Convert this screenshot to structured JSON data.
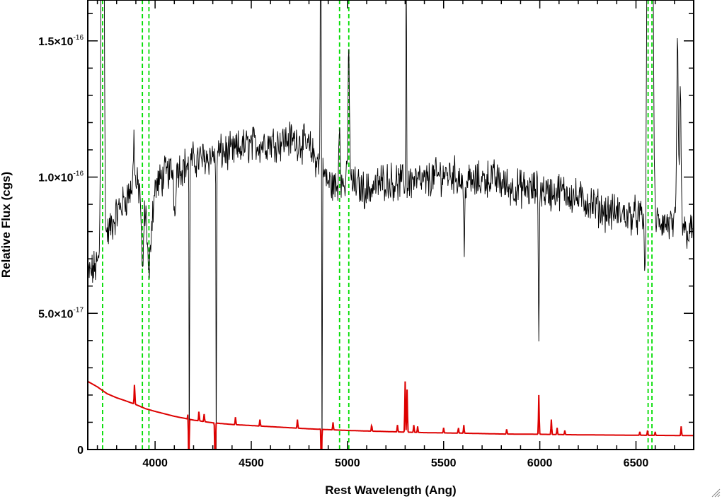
{
  "chart_data": {
    "type": "line",
    "title": "",
    "xlabel": "Rest Wavelength (Ang)",
    "ylabel": "Relative Flux (cgs)",
    "xlim": [
      3650,
      6800
    ],
    "ylim": [
      0,
      1.65e-16
    ],
    "x_ticks": [
      {
        "value": 4000,
        "label": "4000"
      },
      {
        "value": 4500,
        "label": "4500"
      },
      {
        "value": 5000,
        "label": "5000"
      },
      {
        "value": 5500,
        "label": "5500"
      },
      {
        "value": 6000,
        "label": "6000"
      },
      {
        "value": 6500,
        "label": "6500"
      }
    ],
    "y_ticks": [
      {
        "value": 0,
        "mantissa": "0",
        "exponent": ""
      },
      {
        "value": 5e-17,
        "mantissa": "5.0×10",
        "exponent": "-17"
      },
      {
        "value": 1e-16,
        "mantissa": "1.0×10",
        "exponent": "-16"
      },
      {
        "value": 1.5e-16,
        "mantissa": "1.5×10",
        "exponent": "-16"
      }
    ],
    "grid": false,
    "series": [
      {
        "role": "spectrum",
        "color": "#000000",
        "x": [
          3650,
          3680,
          3710,
          3730,
          3750,
          3780,
          3810,
          3840,
          3870,
          3900,
          3930,
          3950,
          3970,
          4000,
          4050,
          4100,
          4150,
          4200,
          4250,
          4300,
          4350,
          4400,
          4450,
          4500,
          4550,
          4600,
          4650,
          4700,
          4750,
          4800,
          4850,
          4900,
          4950,
          5000,
          5050,
          5100,
          5150,
          5200,
          5250,
          5300,
          5350,
          5400,
          5450,
          5500,
          5550,
          5600,
          5650,
          5700,
          5750,
          5800,
          5850,
          5900,
          5950,
          6000,
          6050,
          6100,
          6150,
          6200,
          6250,
          6300,
          6350,
          6400,
          6450,
          6500,
          6550,
          6600,
          6650,
          6700,
          6750,
          6800
        ],
        "y": [
          6.4e-17,
          6.6e-17,
          6.9e-17,
          7.4e-17,
          7.9e-17,
          8.3e-17,
          8.8e-17,
          9.1e-17,
          9.5e-17,
          9.7e-17,
          9.5e-17,
          8.6e-17,
          7.6e-17,
          9.6e-17,
          1.01e-16,
          1.03e-16,
          1.04e-16,
          1.06e-16,
          1.07e-16,
          1.08e-16,
          1.09e-16,
          1.09e-16,
          1.11e-16,
          1.12e-16,
          1.12e-16,
          1.13e-16,
          1.13e-16,
          1.14e-16,
          1.13e-16,
          1.11e-16,
          1.05e-16,
          9.8e-17,
          9.6e-17,
          9.8e-17,
          9.7e-17,
          9.5e-17,
          9.7e-17,
          9.9e-17,
          9.8e-17,
          9.8e-17,
          9.9e-17,
          9.8e-17,
          1e-16,
          1.01e-16,
          1.01e-16,
          9.9e-17,
          9.8e-17,
          9.9e-17,
          1e-16,
          9.8e-17,
          9.6e-17,
          9.6e-17,
          9.5e-17,
          9.6e-17,
          9.4e-17,
          9.5e-17,
          9.4e-17,
          9.2e-17,
          9.1e-17,
          8.9e-17,
          8.7e-17,
          8.7e-17,
          8.6e-17,
          8.6e-17,
          8.4e-17,
          8.4e-17,
          8.3e-17,
          8.2e-17,
          8e-17,
          8e-17
        ],
        "noise": 5.5e-18,
        "lines": [
          {
            "x": 3727,
            "y": 3.5e-16,
            "w": 6
          },
          {
            "x": 3890,
            "y": 1.17e-16,
            "w": 3
          },
          {
            "x": 3934,
            "y": 6.3e-17,
            "w": 5
          },
          {
            "x": 3968,
            "y": 6.2e-17,
            "w": 5
          },
          {
            "x": 4102,
            "y": 8.6e-17,
            "w": 4
          },
          {
            "x": 4178,
            "y": -1e-17,
            "w": 1.5
          },
          {
            "x": 4318,
            "y": -1e-17,
            "w": 1.5
          },
          {
            "x": 4861,
            "y": 2.2e-16,
            "w": 2
          },
          {
            "x": 4868,
            "y": -1e-17,
            "w": 1.5
          },
          {
            "x": 4959,
            "y": 1.2e-16,
            "w": 4
          },
          {
            "x": 5007,
            "y": 1.45e-16,
            "w": 4
          },
          {
            "x": 5306,
            "y": 2e-16,
            "w": 2
          },
          {
            "x": 5308,
            "y": 7.2e-17,
            "w": 2
          },
          {
            "x": 5607,
            "y": 7.2e-17,
            "w": 3
          },
          {
            "x": 5995,
            "y": 4.2e-17,
            "w": 2.5
          },
          {
            "x": 6548,
            "y": 6.1e-17,
            "w": 4
          },
          {
            "x": 6563,
            "y": 2.5e-16,
            "w": 6
          },
          {
            "x": 6583,
            "y": 2.5e-16,
            "w": 6
          },
          {
            "x": 6716,
            "y": 1.5e-16,
            "w": 4
          },
          {
            "x": 6731,
            "y": 1.3e-16,
            "w": 4
          }
        ]
      },
      {
        "role": "error",
        "color": "#dd0000",
        "x": [
          3650,
          3700,
          3750,
          3800,
          3850,
          3900,
          3950,
          4000,
          4100,
          4200,
          4300,
          4400,
          4500,
          4600,
          4700,
          4800,
          4900,
          5000,
          5200,
          5400,
          5600,
          5800,
          6000,
          6200,
          6400,
          6600,
          6800
        ],
        "y": [
          2.5e-17,
          2.3e-17,
          2.05e-17,
          1.9e-17,
          1.78e-17,
          1.65e-17,
          1.5e-17,
          1.4e-17,
          1.22e-17,
          1.08e-17,
          9.8e-18,
          9.2e-18,
          8.8e-18,
          8.4e-18,
          8e-18,
          7.6e-18,
          7.3e-18,
          7e-18,
          6.6e-18,
          6.2e-18,
          6e-18,
          5.7e-18,
          5.6e-18,
          5.4e-18,
          5.3e-18,
          5.2e-18,
          5.1e-18
        ],
        "spikes": [
          {
            "x": 3893,
            "y": 2.4e-17
          },
          {
            "x": 4172,
            "y": 1.5e-17
          },
          {
            "x": 4175,
            "y": -1e-17
          },
          {
            "x": 4228,
            "y": 1.4e-17
          },
          {
            "x": 4255,
            "y": 1.3e-17
          },
          {
            "x": 4312,
            "y": -1e-17
          },
          {
            "x": 4418,
            "y": 1.2e-17
          },
          {
            "x": 4545,
            "y": 1.1e-17
          },
          {
            "x": 4740,
            "y": 1.1e-17
          },
          {
            "x": 4862,
            "y": 1e-17
          },
          {
            "x": 4864,
            "y": -1e-17
          },
          {
            "x": 4925,
            "y": 1e-17
          },
          {
            "x": 5126,
            "y": 9e-18
          },
          {
            "x": 5260,
            "y": 9e-18
          },
          {
            "x": 5300,
            "y": 2.5e-17
          },
          {
            "x": 5310,
            "y": 2.2e-17
          },
          {
            "x": 5345,
            "y": 9e-18
          },
          {
            "x": 5365,
            "y": 8.5e-18
          },
          {
            "x": 5500,
            "y": 8e-18
          },
          {
            "x": 5577,
            "y": 8e-18
          },
          {
            "x": 5605,
            "y": 9e-18
          },
          {
            "x": 5828,
            "y": 7.5e-18
          },
          {
            "x": 5995,
            "y": 2e-17
          },
          {
            "x": 6060,
            "y": 1.1e-17
          },
          {
            "x": 6090,
            "y": 8e-18
          },
          {
            "x": 6130,
            "y": 7e-18
          },
          {
            "x": 6520,
            "y": 6.5e-18
          },
          {
            "x": 6560,
            "y": 7e-18
          },
          {
            "x": 6600,
            "y": 6.5e-18
          },
          {
            "x": 6735,
            "y": 8.5e-18
          }
        ]
      }
    ],
    "markers": {
      "color": "#00dd00",
      "style": "dashed",
      "x": [
        3727,
        3934,
        3968,
        4959,
        5007,
        6563,
        6583
      ]
    }
  }
}
